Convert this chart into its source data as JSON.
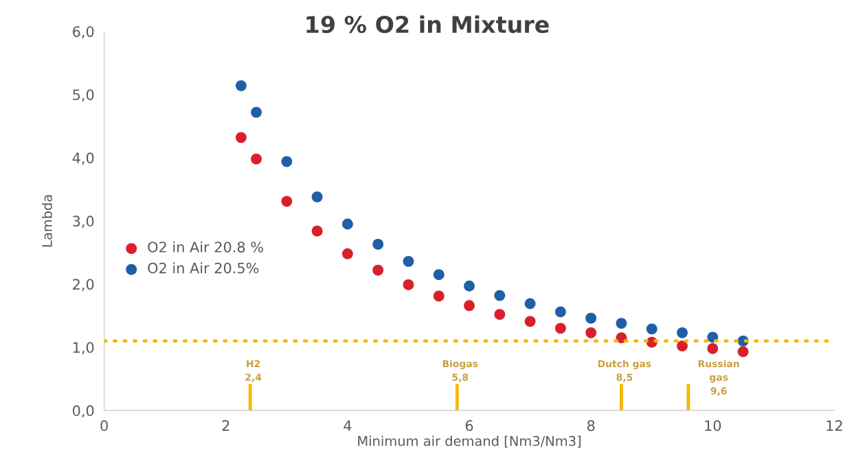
{
  "chart_data": {
    "type": "scatter",
    "title": "19 % O2 in Mixture",
    "xlabel": "Minimum air demand [Nm3/Nm3]",
    "ylabel": "Lambda",
    "x": [
      2.25,
      2.5,
      3,
      3.5,
      4,
      4.5,
      5,
      5.5,
      6,
      6.5,
      7,
      7.5,
      8,
      8.5,
      9,
      9.5,
      10,
      10.5
    ],
    "series": [
      {
        "name": "O2 in Air 20.8 %",
        "color": "#d9202a",
        "values": [
          4.32,
          3.98,
          3.31,
          2.84,
          2.48,
          2.22,
          1.99,
          1.81,
          1.66,
          1.52,
          1.41,
          1.3,
          1.23,
          1.15,
          1.08,
          1.02,
          0.98,
          0.93
        ]
      },
      {
        "name": "O2 in Air 20.5%",
        "color": "#1f5fa8",
        "values": [
          5.14,
          4.72,
          3.94,
          3.38,
          2.95,
          2.63,
          2.36,
          2.15,
          1.97,
          1.82,
          1.69,
          1.56,
          1.46,
          1.38,
          1.29,
          1.23,
          1.16,
          1.1
        ]
      }
    ],
    "xlim": [
      0,
      12
    ],
    "xticks": [
      0,
      2,
      4,
      6,
      8,
      10,
      12
    ],
    "ylim": [
      0,
      6
    ],
    "yticks": [
      {
        "value": 0,
        "label": "0,0"
      },
      {
        "value": 1,
        "label": "1,0"
      },
      {
        "value": 2,
        "label": "2,0"
      },
      {
        "value": 3,
        "label": "3,0"
      },
      {
        "value": 4,
        "label": "4,0"
      },
      {
        "value": 5,
        "label": "5,0"
      },
      {
        "value": 6,
        "label": "6,0"
      }
    ],
    "ref_lines": [
      {
        "axis": "y",
        "value": 1.1,
        "color": "#f5b800",
        "line_style": "dotted"
      },
      {
        "axis": "x",
        "value": 2.4,
        "label": "H2\n2,4",
        "color": "#f5b800"
      },
      {
        "axis": "x",
        "value": 5.8,
        "label": "Biogas\n5,8",
        "color": "#f5b800"
      },
      {
        "axis": "x",
        "value": 8.5,
        "label": "Dutch gas\n8,5",
        "color": "#f5b800"
      },
      {
        "axis": "x",
        "value": 9.6,
        "label": "Russian\ngas\n9,6",
        "color": "#f5b800"
      }
    ],
    "marker": "circle",
    "grid": false,
    "legend": "left"
  }
}
